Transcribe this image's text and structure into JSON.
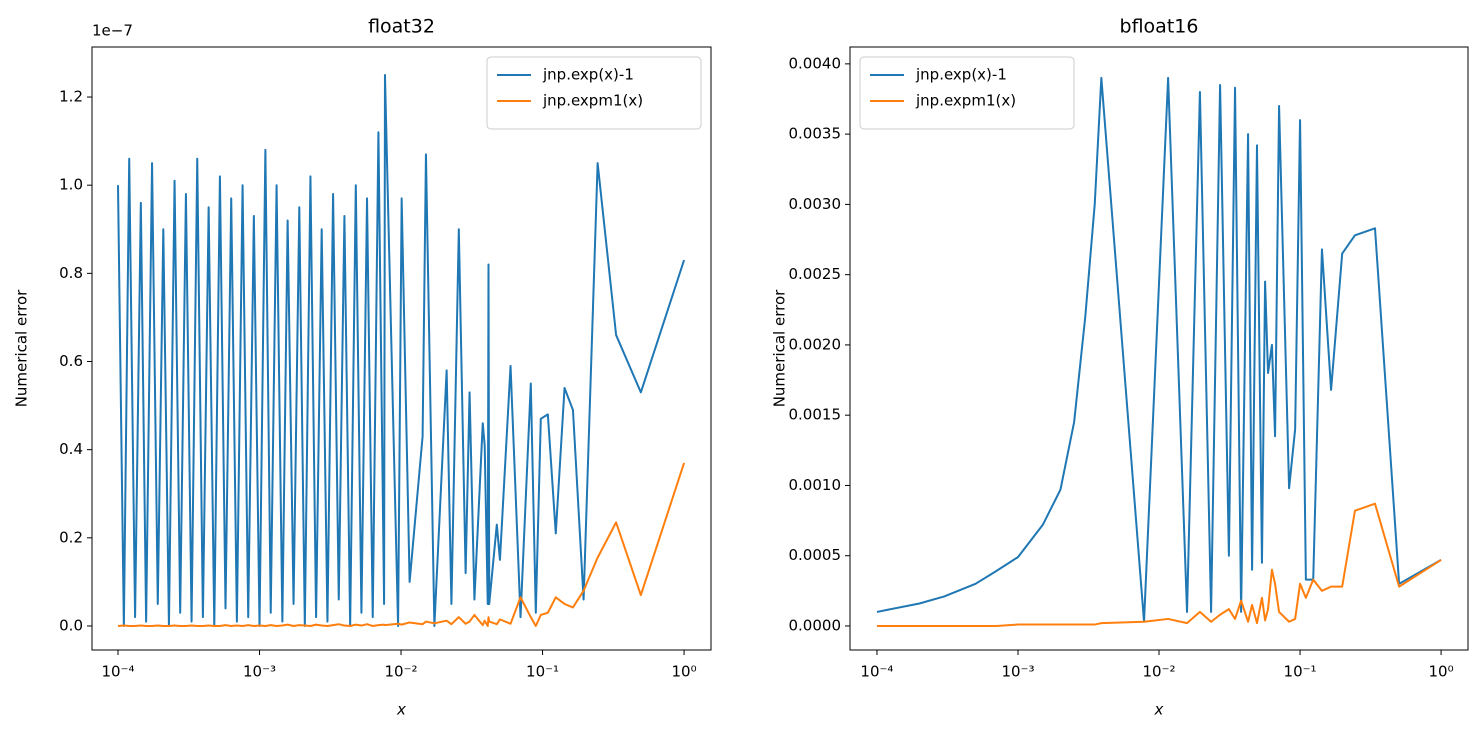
{
  "chart_data": [
    {
      "type": "line",
      "title": "float32",
      "xlabel": "x",
      "ylabel": "Numerical error",
      "y_offset_text": "1e−7",
      "xscale": "log",
      "legend": "upper right",
      "xlim": [
        6.55e-05,
        1.55
      ],
      "ylim": [
        -0.0545,
        1.3135
      ],
      "xticks": [
        {
          "value": 0.0001,
          "label": "10⁻⁴"
        },
        {
          "value": 0.001,
          "label": "10⁻³"
        },
        {
          "value": 0.01,
          "label": "10⁻²"
        },
        {
          "value": 0.1,
          "label": "10⁻¹"
        },
        {
          "value": 1,
          "label": "10⁰"
        }
      ],
      "yticks": [
        {
          "value": 0,
          "label": "0.0"
        },
        0.2,
        0.4,
        0.6,
        0.8,
        {
          "value": 1,
          "label": "1.0"
        },
        1.2
      ],
      "x": [
        0.0001,
        0.00011,
        0.00012,
        0.000132,
        0.000145,
        0.000158,
        0.000174,
        0.000191,
        0.000209,
        0.000229,
        0.000251,
        0.000275,
        0.000302,
        0.000331,
        0.000363,
        0.000398,
        0.000437,
        0.000479,
        0.000525,
        0.000575,
        0.000631,
        0.000692,
        0.000759,
        0.000832,
        0.000912,
        0.001,
        0.0011,
        0.0012,
        0.00132,
        0.00145,
        0.00158,
        0.00174,
        0.00191,
        0.00209,
        0.00229,
        0.00251,
        0.00275,
        0.00302,
        0.00331,
        0.00363,
        0.00398,
        0.00437,
        0.00479,
        0.00525,
        0.00575,
        0.00631,
        0.00692,
        0.00759,
        0.0077,
        0.00953,
        0.0101,
        0.0115,
        0.0142,
        0.015,
        0.0172,
        0.021,
        0.0227,
        0.0256,
        0.0286,
        0.0305,
        0.033,
        0.0378,
        0.039,
        0.041,
        0.0415,
        0.042,
        0.0475,
        0.05,
        0.0594,
        0.0699,
        0.0826,
        0.0896,
        0.0972,
        0.109,
        0.124,
        0.143,
        0.164,
        0.195,
        0.245,
        0.331,
        0.495,
        1.0
      ],
      "series": [
        {
          "name": "jnp.exp(x)-1",
          "color": "#1f77b4",
          "values": [
            1.0,
            0.0,
            1.06,
            0.02,
            0.96,
            0.01,
            1.05,
            0.05,
            0.9,
            0.0,
            1.01,
            0.03,
            0.98,
            0.01,
            1.06,
            0.02,
            0.95,
            0.0,
            1.02,
            0.04,
            0.97,
            0.01,
            1.0,
            0.02,
            0.93,
            0.0,
            1.08,
            0.03,
            1.0,
            0.01,
            0.92,
            0.05,
            0.95,
            0.0,
            1.02,
            0.02,
            0.9,
            0.01,
            0.98,
            0.06,
            0.93,
            0.0,
            1.0,
            0.03,
            0.97,
            0.02,
            1.12,
            0.05,
            1.25,
            0.0,
            0.97,
            0.1,
            0.43,
            1.07,
            0.0,
            0.58,
            0.05,
            0.9,
            0.12,
            0.53,
            0.06,
            0.46,
            0.41,
            0.05,
            0.82,
            0.05,
            0.23,
            0.15,
            0.59,
            0.02,
            0.55,
            0.03,
            0.47,
            0.48,
            0.21,
            0.54,
            0.49,
            0.06,
            1.05,
            0.66,
            0.53,
            0.83
          ]
        },
        {
          "name": "jnp.expm1(x)",
          "color": "#ff7f0e",
          "values": [
            0.0,
            0.001,
            0.0,
            0.0,
            0.001,
            0.0,
            0.0,
            0.001,
            0.0,
            0.0,
            0.001,
            0.0,
            0.0,
            0.001,
            0.0,
            0.0,
            0.001,
            0.0,
            0.0,
            0.002,
            0.0,
            0.001,
            0.0,
            0.002,
            0.0,
            0.001,
            0.0,
            0.002,
            0.0,
            0.001,
            0.003,
            0.0,
            0.002,
            0.001,
            0.0,
            0.003,
            0.001,
            0.0,
            0.002,
            0.004,
            0.001,
            0.0,
            0.003,
            0.001,
            0.004,
            0.0,
            0.002,
            0.003,
            0.002,
            0.005,
            0.003,
            0.008,
            0.004,
            0.01,
            0.006,
            0.012,
            0.004,
            0.02,
            0.005,
            0.01,
            0.025,
            0.002,
            0.012,
            0.0,
            0.02,
            0.01,
            0.004,
            0.015,
            0.005,
            0.065,
            0.02,
            0.0,
            0.025,
            0.03,
            0.065,
            0.05,
            0.042,
            0.08,
            0.155,
            0.235,
            0.07,
            0.37
          ]
        }
      ]
    },
    {
      "type": "line",
      "title": "bfloat16",
      "xlabel": "x",
      "ylabel": "Numerical error",
      "xscale": "log",
      "legend": "upper left",
      "xlim": [
        6.44e-05,
        1.552
      ],
      "ylim": [
        -0.000171,
        0.00412
      ],
      "xticks": [
        {
          "value": 0.0001,
          "label": "10⁻⁴"
        },
        {
          "value": 0.001,
          "label": "10⁻³"
        },
        {
          "value": 0.01,
          "label": "10⁻²"
        },
        {
          "value": 0.1,
          "label": "10⁻¹"
        },
        {
          "value": 1,
          "label": "10⁰"
        }
      ],
      "yticks": [
        {
          "value": 0,
          "label": "0.0000"
        },
        0.0005,
        {
          "value": 0.001,
          "label": "0.0010"
        },
        0.0015,
        {
          "value": 0.002,
          "label": "0.0020"
        },
        0.0025,
        {
          "value": 0.003,
          "label": "0.0030"
        },
        0.0035,
        {
          "value": 0.004,
          "label": "0.0040"
        }
      ],
      "x": [
        0.0001,
        0.0002,
        0.0003,
        0.0005,
        0.0007,
        0.001,
        0.0015,
        0.002,
        0.0025,
        0.003,
        0.0035,
        0.0039,
        0.00783,
        0.0116,
        0.0158,
        0.0195,
        0.0234,
        0.0271,
        0.0313,
        0.0346,
        0.0382,
        0.0428,
        0.0457,
        0.0495,
        0.0537,
        0.0565,
        0.0593,
        0.0632,
        0.0665,
        0.071,
        0.0836,
        0.0923,
        0.1,
        0.11,
        0.124,
        0.143,
        0.166,
        0.199,
        0.245,
        0.34,
        0.504,
        1.0
      ],
      "series": [
        {
          "name": "jnp.exp(x)-1",
          "color": "#1f77b4",
          "values": [
            0.0001,
            0.00016,
            0.00021,
            0.0003,
            0.00039,
            0.00049,
            0.00072,
            0.00097,
            0.00145,
            0.0022,
            0.003,
            0.0039,
            3e-05,
            0.0039,
            0.0001,
            0.0038,
            0.0001,
            0.00385,
            0.0005,
            0.00383,
            0.0001,
            0.0035,
            0.0004,
            0.00342,
            0.00045,
            0.00245,
            0.0018,
            0.002,
            0.00135,
            0.0037,
            0.00098,
            0.0014,
            0.0036,
            0.00033,
            0.00033,
            0.00268,
            0.00168,
            0.00265,
            0.00278,
            0.00283,
            0.0003,
            0.00047
          ]
        },
        {
          "name": "jnp.expm1(x)",
          "color": "#ff7f0e",
          "values": [
            0.0,
            0.0,
            0.0,
            0.0,
            0.0,
            1e-05,
            1e-05,
            1e-05,
            1e-05,
            1e-05,
            1e-05,
            2e-05,
            3e-05,
            5e-05,
            2e-05,
            0.0001,
            3e-05,
            8e-05,
            0.00012,
            5e-05,
            0.00018,
            3e-05,
            0.00015,
            2e-05,
            0.0002,
            4e-05,
            0.00012,
            0.0004,
            0.0003,
            0.0001,
            3e-05,
            5e-05,
            0.0003,
            0.0002,
            0.00033,
            0.00025,
            0.00028,
            0.00028,
            0.00082,
            0.00087,
            0.00028,
            0.00047
          ]
        }
      ]
    }
  ]
}
